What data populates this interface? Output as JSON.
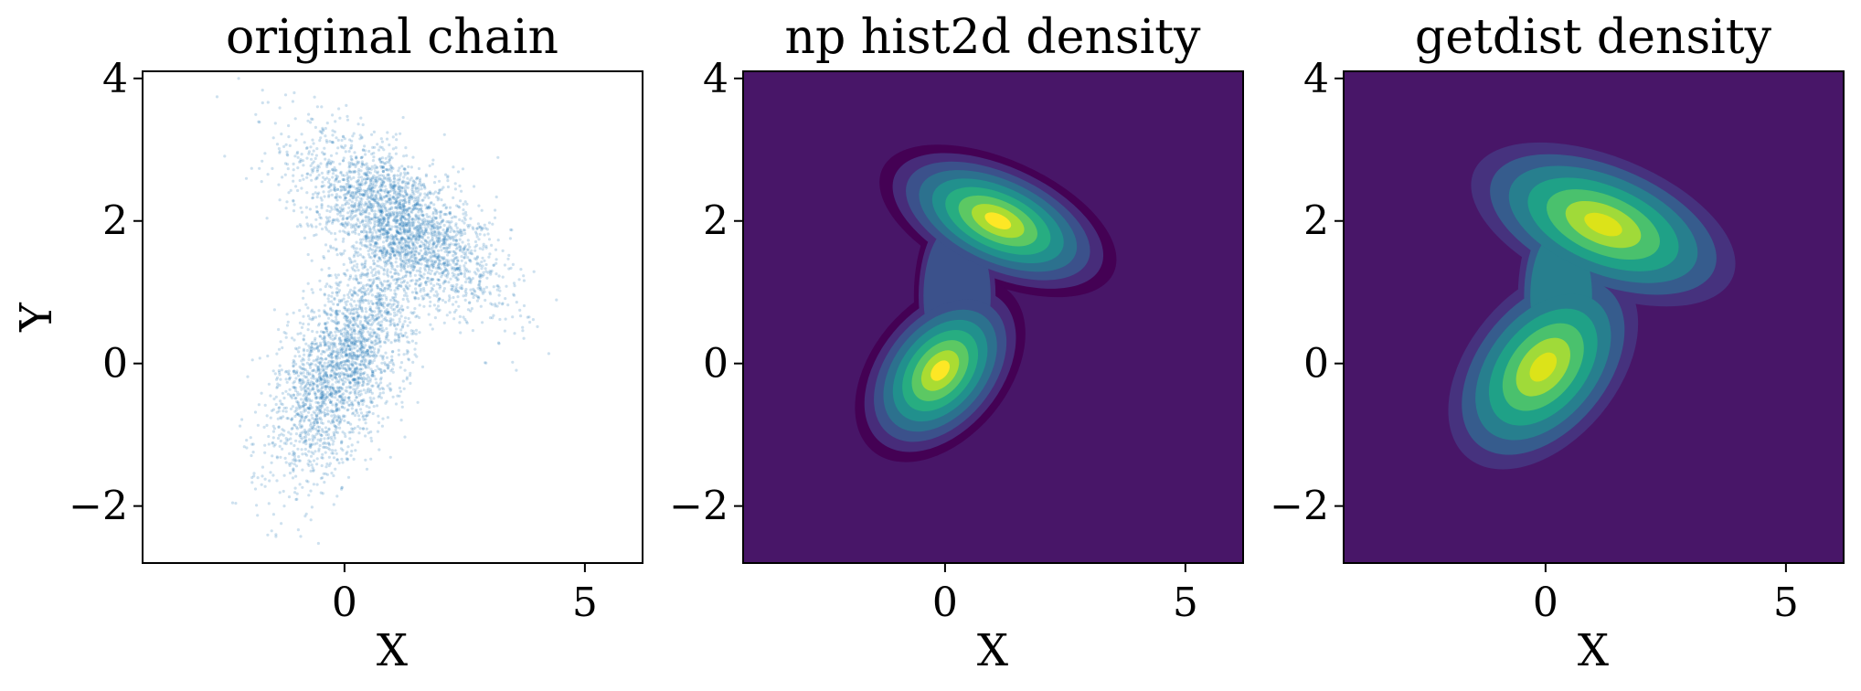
{
  "chart_data": [
    {
      "type": "scatter",
      "title": "original chain",
      "xlabel": "X",
      "ylabel": "Y",
      "xlim": [
        -4.2,
        6.2
      ],
      "ylim": [
        -2.8,
        4.1
      ],
      "xticks": [
        0,
        5
      ],
      "yticks": [
        -2,
        0,
        2,
        4
      ],
      "xtick_labels": [
        "0",
        "5"
      ],
      "ytick_labels": [
        "−2",
        "0",
        "2",
        "4"
      ],
      "grid": false,
      "point_color": "#1f77b4",
      "clusters": [
        {
          "center": [
            1.1,
            2.0
          ],
          "sd_major": 1.1,
          "sd_minor": 0.42,
          "angle_deg": -24,
          "n": 2600
        },
        {
          "center": [
            0.0,
            0.0
          ],
          "sd_major": 1.0,
          "sd_minor": 0.48,
          "angle_deg": 48,
          "n": 2400
        }
      ]
    },
    {
      "type": "heatmap",
      "title": "np hist2d density",
      "xlabel": "X",
      "ylabel": "",
      "xlim": [
        -4.2,
        6.2
      ],
      "ylim": [
        -2.8,
        4.1
      ],
      "xticks": [
        0,
        5
      ],
      "yticks": [
        -2,
        0,
        2,
        4
      ],
      "xtick_labels": [
        "0",
        "5"
      ],
      "ytick_labels": [
        "−2",
        "0",
        "2",
        "4"
      ],
      "colormap": [
        "#440154",
        "#472c7a",
        "#3b518b",
        "#2c718e",
        "#21908d",
        "#27ad81",
        "#5cc863",
        "#aadc32",
        "#fde725"
      ],
      "background": "#481668",
      "peaks": [
        {
          "center": [
            1.1,
            2.0
          ],
          "density": 1.0
        },
        {
          "center": [
            -0.1,
            -0.1
          ],
          "density": 0.95
        }
      ]
    },
    {
      "type": "heatmap",
      "title": "getdist density",
      "xlabel": "X",
      "ylabel": "",
      "xlim": [
        -4.2,
        6.2
      ],
      "ylim": [
        -2.8,
        4.1
      ],
      "xticks": [
        0,
        5
      ],
      "yticks": [
        -2,
        0,
        2,
        4
      ],
      "xtick_labels": [
        "0",
        "5"
      ],
      "ytick_labels": [
        "−2",
        "0",
        "2",
        "4"
      ],
      "colormap": [
        "#46327e",
        "#365c8d",
        "#277f8e",
        "#1fa187",
        "#4ac16d",
        "#a0da39",
        "#dce319"
      ],
      "background": "#481668",
      "peaks": [
        {
          "center": [
            1.2,
            1.95
          ],
          "density": 1.0
        },
        {
          "center": [
            -0.05,
            -0.05
          ],
          "density": 0.95
        }
      ]
    }
  ]
}
